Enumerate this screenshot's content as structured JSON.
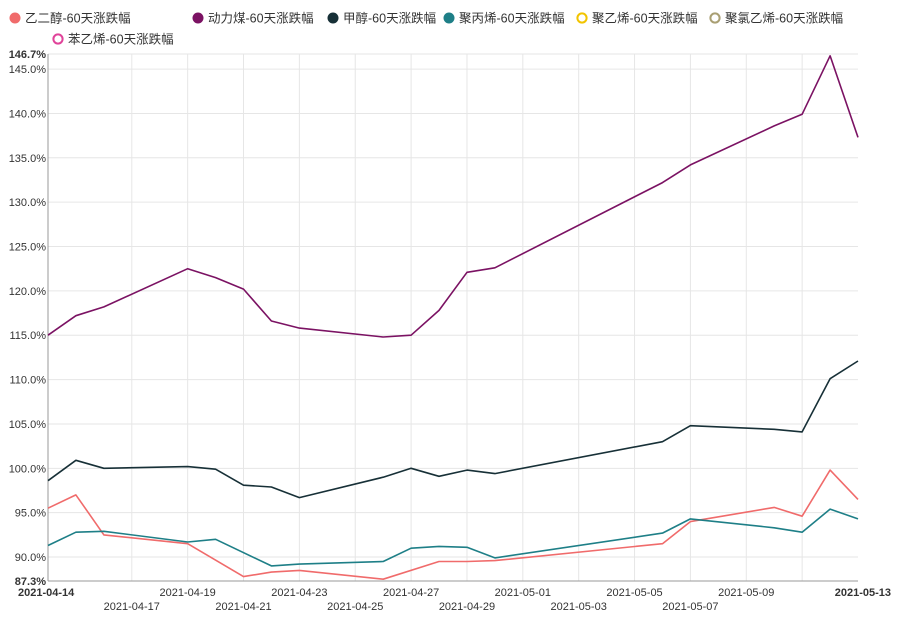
{
  "chart_data": {
    "type": "line",
    "title": "",
    "xlabel": "",
    "ylabel": "",
    "legend_position": "top-left",
    "grid": true,
    "y_unit": "%",
    "ylim": [
      87.3,
      146.7
    ],
    "y_ticks": [
      "87.3%",
      "90.0%",
      "95.0%",
      "100.0%",
      "105.0%",
      "110.0%",
      "115.0%",
      "120.0%",
      "125.0%",
      "130.0%",
      "135.0%",
      "140.0%",
      "145.0%",
      "146.7%"
    ],
    "x_ticks": [
      "2021-04-14",
      "2021-04-17",
      "2021-04-19",
      "2021-04-21",
      "2021-04-23",
      "2021-04-25",
      "2021-04-27",
      "2021-04-29",
      "2021-05-01",
      "2021-05-03",
      "2021-05-05",
      "2021-05-07",
      "2021-05-09",
      "2021-05-13"
    ],
    "x_range": [
      "2021-04-14",
      "2021-05-13"
    ],
    "series": [
      {
        "name": "乙二醇-60天涨跌幅",
        "color": "#f06b6b",
        "marker": "filled",
        "points": [
          [
            "2021-04-14",
            95.5
          ],
          [
            "2021-04-15",
            97.0
          ],
          [
            "2021-04-16",
            92.5
          ],
          [
            "2021-04-19",
            91.5
          ],
          [
            "2021-04-21",
            87.8
          ],
          [
            "2021-04-22",
            88.3
          ],
          [
            "2021-04-23",
            88.5
          ],
          [
            "2021-04-26",
            87.5
          ],
          [
            "2021-04-28",
            89.5
          ],
          [
            "2021-04-29",
            89.5
          ],
          [
            "2021-04-30",
            89.6
          ],
          [
            "2021-05-06",
            91.5
          ],
          [
            "2021-05-07",
            94.0
          ],
          [
            "2021-05-10",
            95.6
          ],
          [
            "2021-05-11",
            94.6
          ],
          [
            "2021-05-12",
            99.8
          ],
          [
            "2021-05-13",
            96.5
          ]
        ]
      },
      {
        "name": "动力煤-60天涨跌幅",
        "color": "#7b1263",
        "marker": "filled",
        "points": [
          [
            "2021-04-14",
            115.0
          ],
          [
            "2021-04-15",
            117.2
          ],
          [
            "2021-04-16",
            118.2
          ],
          [
            "2021-04-19",
            122.5
          ],
          [
            "2021-04-20",
            121.5
          ],
          [
            "2021-04-21",
            120.2
          ],
          [
            "2021-04-22",
            116.6
          ],
          [
            "2021-04-23",
            115.8
          ],
          [
            "2021-04-26",
            114.8
          ],
          [
            "2021-04-27",
            115.0
          ],
          [
            "2021-04-28",
            117.8
          ],
          [
            "2021-04-29",
            122.1
          ],
          [
            "2021-04-30",
            122.6
          ],
          [
            "2021-05-06",
            132.2
          ],
          [
            "2021-05-07",
            134.2
          ],
          [
            "2021-05-10",
            138.6
          ],
          [
            "2021-05-11",
            139.9
          ],
          [
            "2021-05-12",
            146.5
          ],
          [
            "2021-05-13",
            137.3
          ]
        ]
      },
      {
        "name": "甲醇-60天涨跌幅",
        "color": "#173037",
        "marker": "filled",
        "points": [
          [
            "2021-04-14",
            98.6
          ],
          [
            "2021-04-15",
            100.9
          ],
          [
            "2021-04-16",
            100.0
          ],
          [
            "2021-04-19",
            100.2
          ],
          [
            "2021-04-20",
            99.9
          ],
          [
            "2021-04-21",
            98.1
          ],
          [
            "2021-04-22",
            97.9
          ],
          [
            "2021-04-23",
            96.7
          ],
          [
            "2021-04-26",
            99.0
          ],
          [
            "2021-04-27",
            100.0
          ],
          [
            "2021-04-28",
            99.1
          ],
          [
            "2021-04-29",
            99.8
          ],
          [
            "2021-04-30",
            99.4
          ],
          [
            "2021-05-06",
            103.0
          ],
          [
            "2021-05-07",
            104.8
          ],
          [
            "2021-05-10",
            104.4
          ],
          [
            "2021-05-11",
            104.1
          ],
          [
            "2021-05-12",
            110.1
          ],
          [
            "2021-05-13",
            112.1
          ]
        ]
      },
      {
        "name": "聚丙烯-60天涨跌幅",
        "color": "#1e7f87",
        "marker": "filled",
        "points": [
          [
            "2021-04-14",
            91.3
          ],
          [
            "2021-04-15",
            92.8
          ],
          [
            "2021-04-16",
            92.9
          ],
          [
            "2021-04-19",
            91.7
          ],
          [
            "2021-04-20",
            92.0
          ],
          [
            "2021-04-22",
            89.0
          ],
          [
            "2021-04-23",
            89.2
          ],
          [
            "2021-04-26",
            89.5
          ],
          [
            "2021-04-27",
            91.0
          ],
          [
            "2021-04-28",
            91.2
          ],
          [
            "2021-04-29",
            91.1
          ],
          [
            "2021-04-30",
            89.9
          ],
          [
            "2021-05-06",
            92.7
          ],
          [
            "2021-05-07",
            94.3
          ],
          [
            "2021-05-10",
            93.3
          ],
          [
            "2021-05-11",
            92.8
          ],
          [
            "2021-05-12",
            95.4
          ],
          [
            "2021-05-13",
            94.3
          ]
        ]
      },
      {
        "name": "聚乙烯-60天涨跌幅",
        "color": "#f2c400",
        "marker": "hollow",
        "points": []
      },
      {
        "name": "聚氯乙烯-60天涨跌幅",
        "color": "#a99f73",
        "marker": "hollow",
        "points": []
      },
      {
        "name": "苯乙烯-60天涨跌幅",
        "color": "#e0439a",
        "marker": "hollow",
        "points": []
      }
    ]
  }
}
